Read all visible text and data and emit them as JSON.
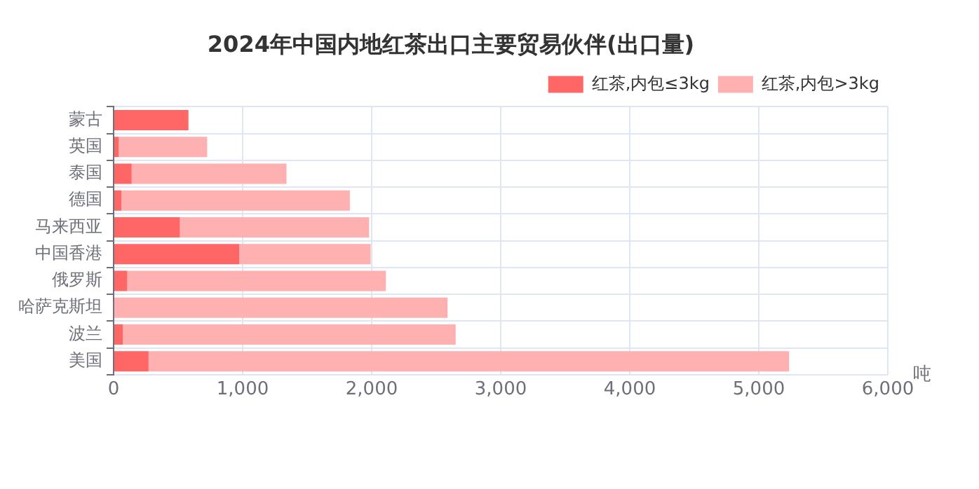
{
  "chart_data": {
    "type": "bar",
    "orientation": "horizontal",
    "stacked": true,
    "title": "2024年中国内地红茶出口主要贸易伙伴(出口量)",
    "xlabel": "吨",
    "categories": [
      "蒙古",
      "英国",
      "泰国",
      "德国",
      "马来西亚",
      "中国香港",
      "俄罗斯",
      "哈萨克斯坦",
      "波兰",
      "美国"
    ],
    "series": [
      {
        "name": "红茶,内包≤3kg",
        "color": "#ff6666",
        "values": [
          580,
          40,
          140,
          60,
          514,
          973,
          106,
          0,
          71,
          271
        ]
      },
      {
        "name": "红茶,内包>3kg",
        "color": "#ffb0b0",
        "values": [
          0,
          685,
          1200,
          1771,
          1466,
          1019,
          2004,
          2588,
          2580,
          4964
        ]
      }
    ],
    "xlim": [
      0,
      6000
    ],
    "xticks": [
      {
        "value": 0,
        "label": "0"
      },
      {
        "value": 1000,
        "label": "1,000"
      },
      {
        "value": 2000,
        "label": "2,000"
      },
      {
        "value": 3000,
        "label": "3,000"
      },
      {
        "value": 4000,
        "label": "4,000"
      },
      {
        "value": 5000,
        "label": "5,000"
      },
      {
        "value": 6000,
        "label": "6,000"
      }
    ],
    "grid": true,
    "legend": "top right"
  }
}
